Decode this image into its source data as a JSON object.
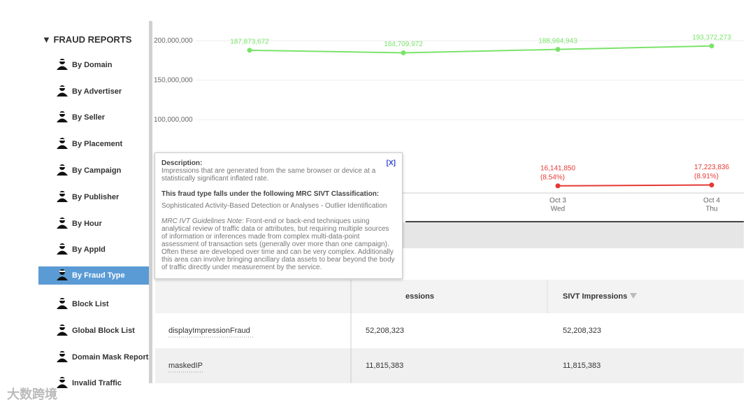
{
  "sidebar": {
    "header": "▼ FRAUD REPORTS",
    "items": [
      "By Domain",
      "By Advertiser",
      "By Seller",
      "By Placement",
      "By Campaign",
      "By Publisher",
      "By Hour",
      "By AppId",
      "By Fraud Type",
      "Block List",
      "Global Block List",
      "Domain Mask Report",
      "Invalid Traffic"
    ],
    "selected": 8
  },
  "chart": {
    "type": "line",
    "categories": [
      null,
      null,
      "Oct 3",
      "Oct 4"
    ],
    "weekdays": [
      null,
      null,
      "Wed",
      "Thu"
    ],
    "ylim": [
      0,
      225000000
    ],
    "yticks": [
      {
        "value": 100000000,
        "label": "100,000,000"
      },
      {
        "value": 150000000,
        "label": "150,000,000"
      },
      {
        "value": 200000000,
        "label": "200,000,000"
      }
    ],
    "grid": true,
    "series": [
      {
        "color": "#7be36b",
        "values": [
          187873672,
          184709972,
          188984943,
          193372273
        ],
        "value_labels": [
          "187,873,672",
          "184,709,972",
          "188,984,943",
          "193,372,273"
        ]
      },
      {
        "color": "#e53935",
        "values": [
          null,
          null,
          16141850,
          17223836
        ],
        "value_labels": [
          null,
          null,
          "16,141,850",
          "17,223,836"
        ],
        "percent_labels": [
          null,
          null,
          "(8.54%)",
          "(8.91%)"
        ]
      }
    ]
  },
  "tooltip": {
    "title": "Description:",
    "close": "[X]",
    "description": "Impressions that are generated from the same browser or device at a statistically significant inflated rate.",
    "classification_title": "This fraud type falls under the following MRC SIVT Classification:",
    "classification": "Sophisticated Activity-Based Detection or Analyses - Outlier Identification",
    "note_label": "MRC IVT Guidelines Note",
    "note": ": Front-end or back-end techniques using analytical review of traffic data or attributes, but requiring multiple sources of information or inferences made from complex multi-data-point assessment of transaction sets (generally over more than one campaign). Often these are developed over time and can be very complex. Additionally this area can involve bringing ancillary data assets to bear beyond the body of traffic directly under measurement by the service."
  },
  "table": {
    "headers": [
      null,
      "essions",
      "SIVT Impressions"
    ],
    "rows": [
      [
        "displayImpressionFraud",
        "52,208,323",
        "52,208,323"
      ],
      [
        "maskedIP",
        "11,815,383",
        "11,815,383"
      ]
    ]
  },
  "watermark": "大数跨境"
}
